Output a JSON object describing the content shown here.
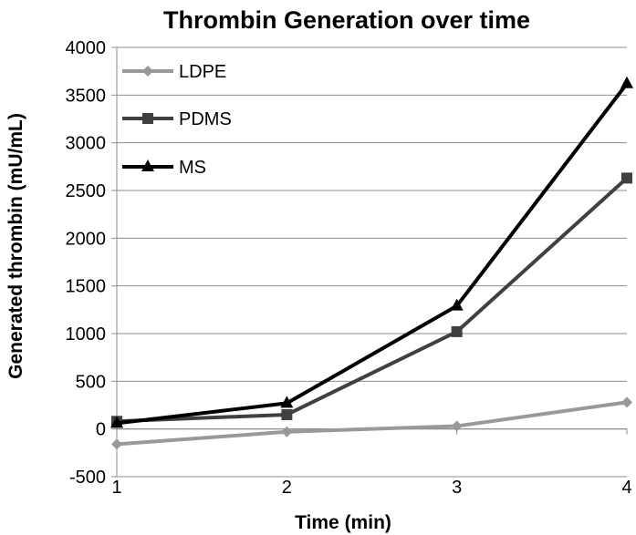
{
  "chart_data": {
    "type": "line",
    "title": "Thrombin Generation over time",
    "xlabel": "Time (min)",
    "ylabel": "Generated thrombin (mU/mL)",
    "categories": [
      "1",
      "2",
      "3",
      "4"
    ],
    "y_ticks": [
      "4000",
      "3500",
      "3000",
      "2500",
      "2000",
      "1500",
      "1000",
      "500",
      "0",
      "-500"
    ],
    "ylim": [
      -500,
      4000
    ],
    "grid": "horizontal",
    "legend_position": "top-left",
    "series": [
      {
        "name": "LDPE",
        "values": [
          -160,
          -30,
          30,
          280
        ],
        "color": "#999999",
        "marker": "diamond"
      },
      {
        "name": "PDMS",
        "values": [
          80,
          150,
          1020,
          2630
        ],
        "color": "#404040",
        "marker": "square"
      },
      {
        "name": "MS",
        "values": [
          60,
          270,
          1290,
          3620
        ],
        "color": "#000000",
        "marker": "triangle"
      }
    ]
  }
}
